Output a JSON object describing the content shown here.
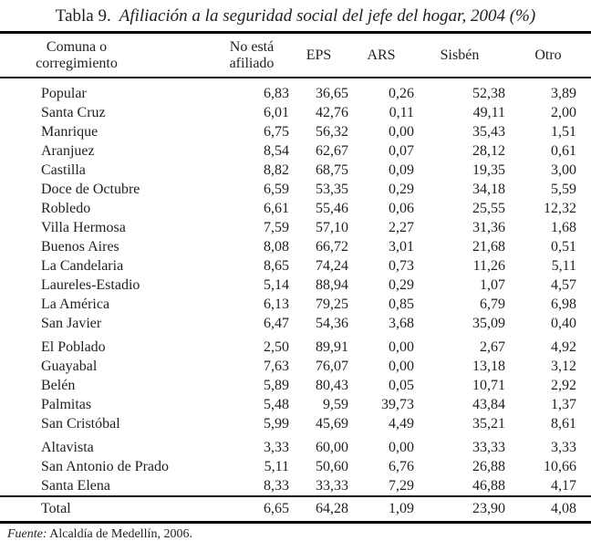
{
  "title": {
    "prefix": "Tabla 9.",
    "text": "Afiliación a la seguridad social del jefe del hogar, 2004 (%)"
  },
  "table": {
    "columns": [
      "Comuna o\ncorregimiento",
      "No está\nafiliado",
      "EPS",
      "ARS",
      "Sisbén",
      "Otro"
    ],
    "rows": [
      {
        "name": "Popular",
        "values": [
          "6,83",
          "36,65",
          "0,26",
          "52,38",
          "3,89"
        ]
      },
      {
        "name": "Santa Cruz",
        "values": [
          "6,01",
          "42,76",
          "0,11",
          "49,11",
          "2,00"
        ]
      },
      {
        "name": "Manrique",
        "values": [
          "6,75",
          "56,32",
          "0,00",
          "35,43",
          "1,51"
        ]
      },
      {
        "name": "Aranjuez",
        "values": [
          "8,54",
          "62,67",
          "0,07",
          "28,12",
          "0,61"
        ]
      },
      {
        "name": "Castilla",
        "values": [
          "8,82",
          "68,75",
          "0,09",
          "19,35",
          "3,00"
        ]
      },
      {
        "name": "Doce de Octubre",
        "values": [
          "6,59",
          "53,35",
          "0,29",
          "34,18",
          "5,59"
        ]
      },
      {
        "name": "Robledo",
        "values": [
          "6,61",
          "55,46",
          "0,06",
          "25,55",
          "12,32"
        ]
      },
      {
        "name": "Villa Hermosa",
        "values": [
          "7,59",
          "57,10",
          "2,27",
          "31,36",
          "1,68"
        ]
      },
      {
        "name": "Buenos Aires",
        "values": [
          "8,08",
          "66,72",
          "3,01",
          "21,68",
          "0,51"
        ]
      },
      {
        "name": "La Candelaria",
        "values": [
          "8,65",
          "74,24",
          "0,73",
          "11,26",
          "5,11"
        ]
      },
      {
        "name": "Laureles-Estadio",
        "values": [
          "5,14",
          "88,94",
          "0,29",
          "1,07",
          "4,57"
        ]
      },
      {
        "name": "La América",
        "values": [
          "6,13",
          "79,25",
          "0,85",
          "6,79",
          "6,98"
        ]
      },
      {
        "name": "San Javier",
        "values": [
          "6,47",
          "54,36",
          "3,68",
          "35,09",
          "0,40"
        ]
      },
      {
        "name": "El Poblado",
        "values": [
          "2,50",
          "89,91",
          "0,00",
          "2,67",
          "4,92"
        ],
        "group_start": true
      },
      {
        "name": "Guayabal",
        "values": [
          "7,63",
          "76,07",
          "0,00",
          "13,18",
          "3,12"
        ]
      },
      {
        "name": "Belén",
        "values": [
          "5,89",
          "80,43",
          "0,05",
          "10,71",
          "2,92"
        ]
      },
      {
        "name": "Palmitas",
        "values": [
          "5,48",
          "9,59",
          "39,73",
          "43,84",
          "1,37"
        ]
      },
      {
        "name": "San Cristóbal",
        "values": [
          "5,99",
          "45,69",
          "4,49",
          "35,21",
          "8,61"
        ]
      },
      {
        "name": "Altavista",
        "values": [
          "3,33",
          "60,00",
          "0,00",
          "33,33",
          "3,33"
        ],
        "group_start": true
      },
      {
        "name": "San Antonio de Prado",
        "values": [
          "5,11",
          "50,60",
          "6,76",
          "26,88",
          "10,66"
        ]
      },
      {
        "name": "Santa Elena",
        "values": [
          "8,33",
          "33,33",
          "7,29",
          "46,88",
          "4,17"
        ]
      }
    ],
    "total": {
      "name": "Total",
      "values": [
        "6,65",
        "64,28",
        "1,09",
        "23,90",
        "4,08"
      ]
    }
  },
  "source": {
    "prefix": "Fuente:",
    "text": " Alcaldía de Medellín, 2006."
  }
}
